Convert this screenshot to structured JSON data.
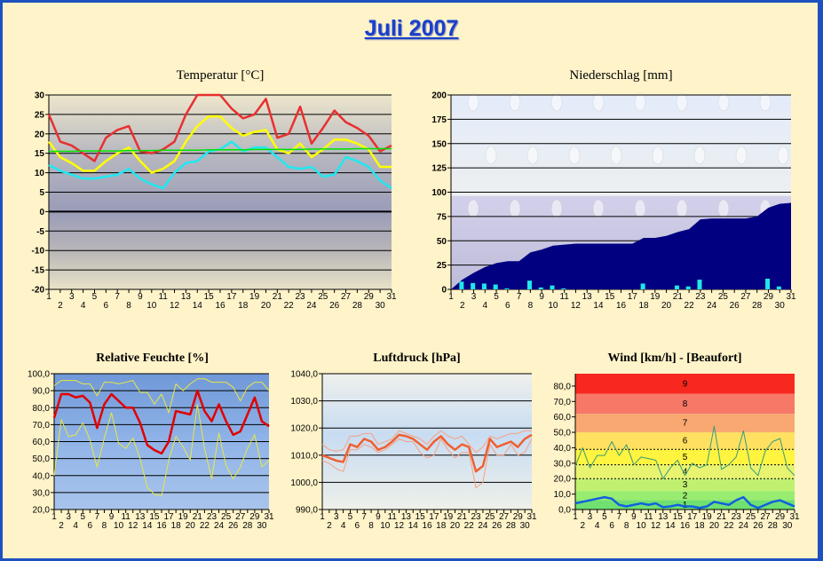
{
  "page": {
    "title": "Juli 2007"
  },
  "colors": {
    "border": "#1E50C0",
    "background": "#FFF3C9",
    "title": "#1A3FD0"
  },
  "chart_data": [
    {
      "id": "temperature",
      "type": "line",
      "title": "Temperatur [°C]",
      "x": [
        1,
        2,
        3,
        4,
        5,
        6,
        7,
        8,
        9,
        10,
        11,
        12,
        13,
        14,
        15,
        16,
        17,
        18,
        19,
        20,
        21,
        22,
        23,
        24,
        25,
        26,
        27,
        28,
        29,
        30,
        31
      ],
      "ylim": [
        -20,
        30
      ],
      "yticks": [
        30,
        25,
        20,
        15,
        10,
        5,
        0,
        -5,
        -10,
        -15,
        -20
      ],
      "ytick_labels": [
        "30",
        "25",
        "20",
        "15",
        "10",
        "5",
        "0",
        "-5",
        "-10",
        "-15",
        "-20"
      ],
      "grid": true,
      "series": [
        {
          "color": "#E83030",
          "values": [
            25,
            18,
            17,
            15,
            13,
            19,
            21,
            22,
            15.5,
            15,
            16,
            18,
            25,
            30,
            31,
            31,
            26.5,
            24,
            25,
            29,
            19,
            20,
            27,
            17.5,
            21.5,
            26,
            23,
            21.5,
            19.5,
            15.5,
            17
          ]
        },
        {
          "color": "#FFFF00",
          "values": [
            18,
            14,
            12.5,
            10.5,
            10.5,
            13,
            15,
            16.5,
            13,
            10,
            11,
            13,
            18,
            22,
            24.5,
            24.5,
            21.5,
            19.5,
            20.5,
            21,
            16,
            15,
            17.5,
            14,
            16,
            18.5,
            18.5,
            17.5,
            16,
            11.5,
            11.5
          ]
        },
        {
          "color": "#20E8F0",
          "values": [
            12,
            10.5,
            9.5,
            8.5,
            8.5,
            9,
            9.5,
            11,
            8.5,
            7,
            6,
            10,
            12.5,
            13,
            15.5,
            16,
            18,
            15.5,
            16.5,
            16.5,
            14,
            11.5,
            11,
            11.5,
            9,
            9.5,
            14,
            13,
            11.5,
            8,
            6
          ]
        },
        {
          "color": "#00E000",
          "values": [
            15.5,
            15.5,
            15.5,
            15.6,
            15.6,
            15.6,
            15.6,
            15.7,
            15.7,
            15.7,
            15.8,
            15.8,
            15.8,
            15.8,
            15.9,
            15.9,
            15.9,
            15.9,
            16,
            16,
            16,
            16,
            16,
            16.1,
            16.1,
            16.1,
            16.1,
            16.2,
            16.2,
            16.2,
            16.2
          ]
        }
      ]
    },
    {
      "id": "precipitation",
      "type": "area",
      "title": "Niederschlag [mm]",
      "x": [
        1,
        2,
        3,
        4,
        5,
        6,
        7,
        8,
        9,
        10,
        11,
        12,
        13,
        14,
        15,
        16,
        17,
        18,
        19,
        20,
        21,
        22,
        23,
        24,
        25,
        26,
        27,
        28,
        29,
        30,
        31
      ],
      "ylim": [
        0,
        200
      ],
      "yticks": [
        200,
        175,
        150,
        125,
        100,
        75,
        50,
        25,
        0
      ],
      "ytick_labels": [
        "200",
        "175",
        "150",
        "125",
        "100",
        "75",
        "50",
        "25",
        "0"
      ],
      "grid": true,
      "cumulative": {
        "color": "#000080",
        "values": [
          0,
          10,
          17,
          23,
          27,
          29,
          29,
          38,
          41,
          45,
          46,
          47,
          47,
          47,
          47,
          47,
          47,
          53,
          53,
          55,
          59,
          62,
          72,
          73,
          73,
          73,
          73,
          75,
          84,
          88,
          89
        ]
      },
      "daily": {
        "color": "#20E8E8",
        "values": [
          0,
          8,
          6.5,
          6,
          5,
          1,
          0,
          9,
          2,
          4,
          1,
          0,
          0,
          0,
          0,
          0,
          0,
          6,
          0,
          0,
          4,
          3,
          10,
          0,
          0,
          0,
          0,
          0,
          11,
          3,
          0
        ]
      }
    },
    {
      "id": "humidity",
      "type": "line",
      "title": "Relative Feuchte [%]",
      "x": [
        1,
        2,
        3,
        4,
        5,
        6,
        7,
        8,
        9,
        10,
        11,
        12,
        13,
        14,
        15,
        16,
        17,
        18,
        19,
        20,
        21,
        22,
        23,
        24,
        25,
        26,
        27,
        28,
        29,
        30,
        31
      ],
      "ylim": [
        20,
        100
      ],
      "yticks": [
        100,
        90,
        80,
        70,
        60,
        50,
        40,
        30,
        20
      ],
      "ytick_labels": [
        "100,0",
        "90,0",
        "80,0",
        "70,0",
        "60,0",
        "50,0",
        "40,0",
        "30,0",
        "20,0"
      ],
      "grid": true,
      "series": [
        {
          "color": "#E8E840",
          "values": [
            93,
            96,
            96,
            96,
            94,
            94,
            87,
            95,
            95,
            94,
            95,
            96,
            89,
            89,
            82,
            88,
            77,
            94,
            90,
            94,
            97,
            97,
            95,
            95,
            95,
            92,
            84,
            92,
            95,
            95,
            90
          ]
        },
        {
          "color": "#E8E840",
          "values": [
            40,
            73,
            63,
            64,
            71,
            61,
            45,
            62,
            77,
            59,
            56,
            62,
            50,
            33,
            29,
            28,
            49,
            63,
            57,
            49,
            82,
            56,
            38,
            65,
            46,
            38,
            45,
            56,
            64,
            45,
            49
          ]
        },
        {
          "color": "#E00000",
          "values": [
            74,
            88,
            88,
            86,
            87,
            83,
            68,
            82,
            88,
            84,
            80,
            80,
            71,
            58,
            55,
            53,
            60,
            78,
            77,
            76,
            90,
            78,
            72,
            82,
            72,
            64,
            66,
            76,
            86,
            72,
            69
          ]
        }
      ]
    },
    {
      "id": "pressure",
      "type": "line",
      "title": "Luftdruck [hPa]",
      "x": [
        1,
        2,
        3,
        4,
        5,
        6,
        7,
        8,
        9,
        10,
        11,
        12,
        13,
        14,
        15,
        16,
        17,
        18,
        19,
        20,
        21,
        22,
        23,
        24,
        25,
        26,
        27,
        28,
        29,
        30,
        31
      ],
      "ylim": [
        990,
        1040
      ],
      "yticks": [
        1040,
        1030,
        1020,
        1010,
        1000,
        990
      ],
      "ytick_labels": [
        "1040,0",
        "1030,0",
        "1020,0",
        "1010,0",
        "1000,0",
        "990,0"
      ],
      "grid": true,
      "series": [
        {
          "color": "#F8A080",
          "values": [
            1014,
            1012,
            1011.5,
            1012,
            1017,
            1017,
            1018,
            1018,
            1014,
            1015,
            1016,
            1019,
            1018,
            1017,
            1016,
            1014,
            1017,
            1019,
            1017,
            1016,
            1017,
            1014,
            1011,
            1013,
            1017,
            1016,
            1017,
            1018,
            1018,
            1019,
            1019
          ]
        },
        {
          "color": "#F8A080",
          "values": [
            1008,
            1007,
            1005,
            1004,
            1012,
            1012,
            1014,
            1013,
            1011,
            1012,
            1014,
            1016,
            1015,
            1015,
            1011,
            1009,
            1010,
            1016,
            1012,
            1009,
            1011,
            1011,
            998,
            1000,
            1014,
            1010,
            1010,
            1014,
            1010,
            1011,
            1016
          ]
        },
        {
          "color": "#F06030",
          "values": [
            1010,
            1009,
            1008,
            1007.5,
            1014,
            1013,
            1016,
            1015,
            1012,
            1013,
            1015,
            1017.5,
            1017,
            1016,
            1014,
            1012,
            1015,
            1017,
            1014,
            1012,
            1014,
            1013,
            1004,
            1006,
            1016,
            1013,
            1014,
            1015,
            1013,
            1016,
            1017.5
          ]
        }
      ]
    },
    {
      "id": "wind",
      "type": "line",
      "title": "Wind [km/h] - [Beaufort]",
      "x": [
        1,
        2,
        3,
        4,
        5,
        6,
        7,
        8,
        9,
        10,
        11,
        12,
        13,
        14,
        15,
        16,
        17,
        18,
        19,
        20,
        21,
        22,
        23,
        24,
        25,
        26,
        27,
        28,
        29,
        30,
        31
      ],
      "ylim": [
        0,
        88
      ],
      "yticks": [
        80,
        70,
        60,
        50,
        40,
        30,
        20,
        10,
        0
      ],
      "ytick_labels": [
        "80,0",
        "70,0",
        "60,0",
        "50,0",
        "40,0",
        "30,0",
        "20,0",
        "10,0",
        "0,0"
      ],
      "dotted_lines": [
        20,
        29,
        39
      ],
      "beaufort_bands": [
        {
          "label": "1",
          "from": 0,
          "to": 6,
          "color": "#70E070"
        },
        {
          "label": "2",
          "from": 6,
          "to": 12,
          "color": "#98EC70"
        },
        {
          "label": "3",
          "from": 12,
          "to": 20,
          "color": "#C0F070"
        },
        {
          "label": "4",
          "from": 20,
          "to": 29,
          "color": "#E8F470"
        },
        {
          "label": "5",
          "from": 29,
          "to": 39,
          "color": "#FFF440"
        },
        {
          "label": "6",
          "from": 39,
          "to": 50,
          "color": "#FFE060"
        },
        {
          "label": "7",
          "from": 50,
          "to": 62,
          "color": "#F8A870"
        },
        {
          "label": "8",
          "from": 62,
          "to": 75,
          "color": "#F87868"
        },
        {
          "label": "9",
          "from": 75,
          "to": 88,
          "color": "#F82820"
        }
      ],
      "series": [
        {
          "color": "#3A9A7A",
          "values": [
            28,
            40,
            27,
            35,
            35,
            44,
            35,
            42,
            29,
            34,
            33,
            32,
            20,
            27,
            32,
            22,
            30,
            27,
            29,
            54,
            26,
            29,
            34,
            51,
            27,
            22,
            38,
            44,
            46,
            27,
            22
          ]
        },
        {
          "color": "#1060E0",
          "values": [
            4,
            5,
            6,
            7,
            8,
            7,
            3,
            2,
            3,
            4,
            3,
            4,
            1.5,
            2,
            3,
            2,
            2,
            1,
            2,
            5,
            4,
            3,
            6,
            8,
            3,
            1,
            3,
            5,
            6,
            4,
            2
          ]
        }
      ]
    }
  ]
}
